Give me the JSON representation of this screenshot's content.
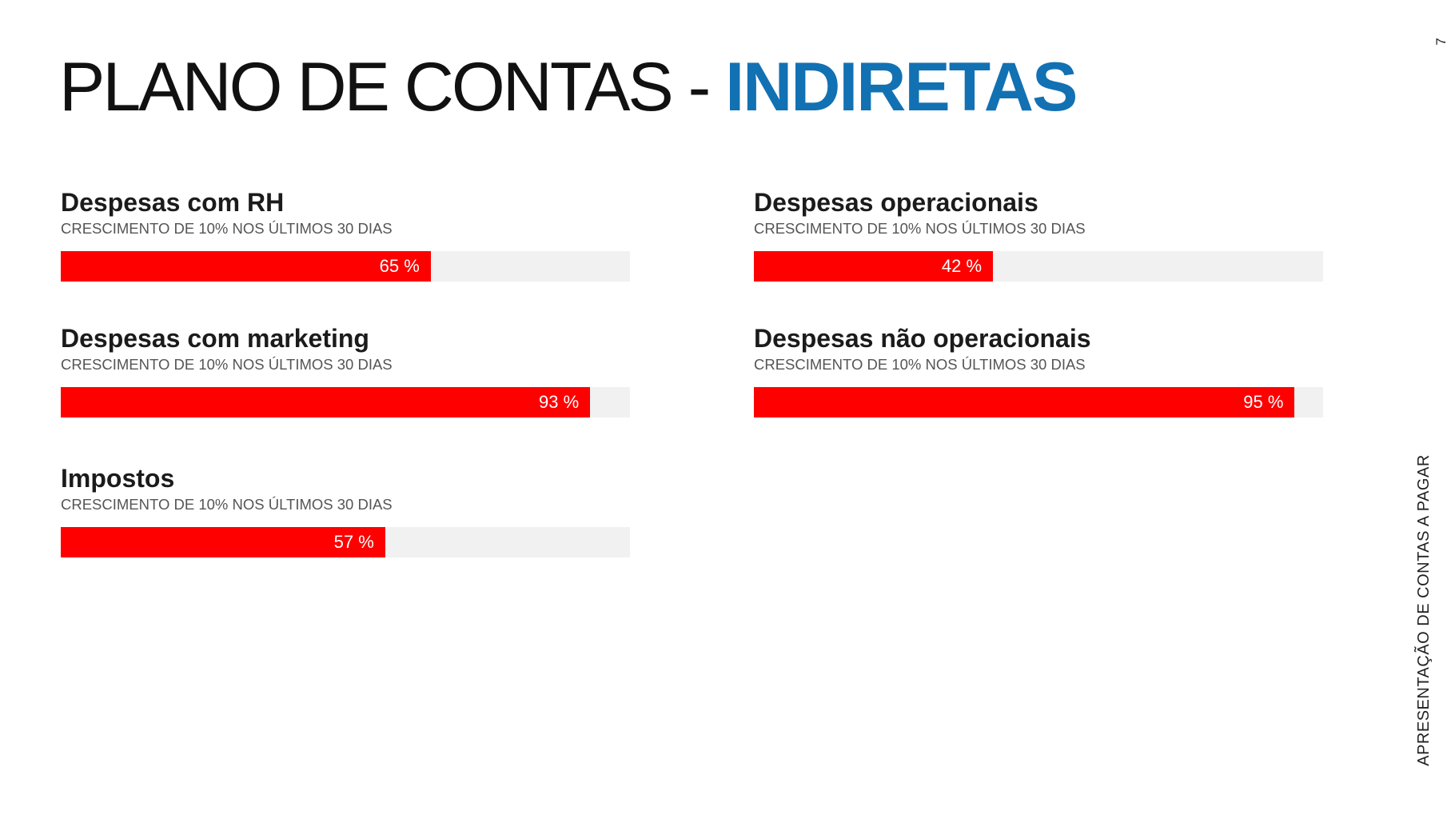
{
  "title": {
    "prefix": "PLANO DE CONTAS - ",
    "accent": "INDIRETAS"
  },
  "page_number": "7",
  "side_caption": "APRESENTAÇÃO DE CONTAS A PAGAR",
  "colors": {
    "accent": "#1271b3",
    "bar_fill": "#ff0000",
    "bar_track": "#f1f1f1"
  },
  "metrics": [
    {
      "title": "Despesas com RH",
      "subtitle": "CRESCIMENTO DE 10% NOS ÚLTIMOS 30 DIAS",
      "percent": 65,
      "value_label": "65 %"
    },
    {
      "title": "Despesas operacionais",
      "subtitle": "CRESCIMENTO DE 10% NOS ÚLTIMOS 30 DIAS",
      "percent": 42,
      "value_label": "42 %"
    },
    {
      "title": "Despesas com marketing",
      "subtitle": "CRESCIMENTO DE 10% NOS ÚLTIMOS 30 DIAS",
      "percent": 93,
      "value_label": "93 %"
    },
    {
      "title": "Despesas não operacionais",
      "subtitle": "CRESCIMENTO DE 10% NOS ÚLTIMOS 30 DIAS",
      "percent": 95,
      "value_label": "95 %"
    },
    {
      "title": "Impostos",
      "subtitle": "CRESCIMENTO DE 10% NOS ÚLTIMOS 30 DIAS",
      "percent": 57,
      "value_label": "57 %"
    }
  ]
}
